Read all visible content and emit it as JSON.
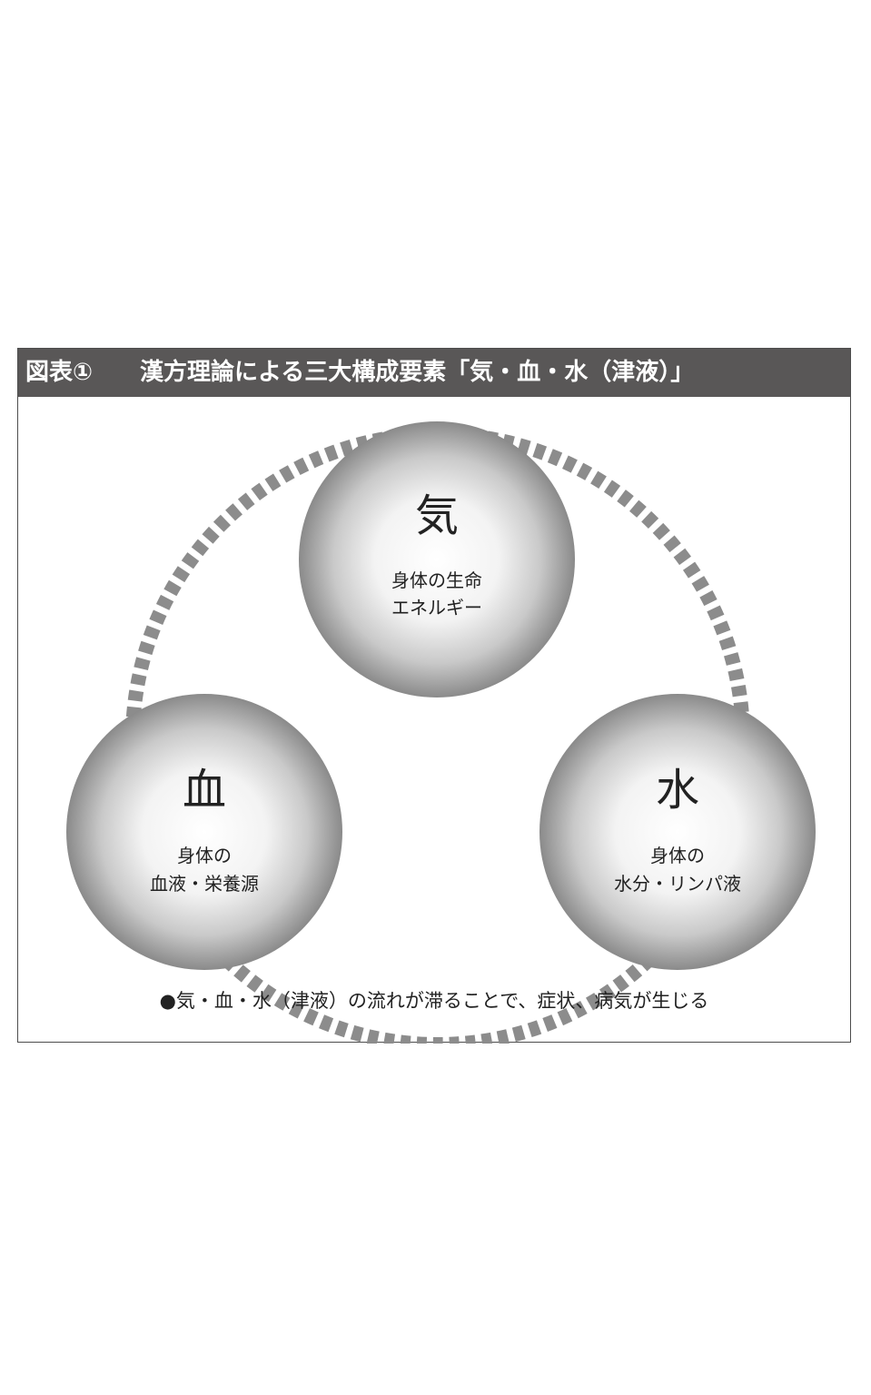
{
  "title": {
    "number": "図表①",
    "text": "漢方理論による三大構成要素「気・血・水（津液）」"
  },
  "nodes": [
    {
      "id": "ki",
      "kanji": "気",
      "desc_line1": "身体の生命",
      "desc_line2": "エネルギー"
    },
    {
      "id": "ketsu",
      "kanji": "血",
      "desc_line1": "身体の",
      "desc_line2": "血液・栄養源"
    },
    {
      "id": "sui",
      "kanji": "水",
      "desc_line1": "身体の",
      "desc_line2": "水分・リンパ液"
    }
  ],
  "note": "●気・血・水（津液）の流れが滞ることで、症状、病気が生じる",
  "colors": {
    "title_bar": "#595757",
    "border": "#4d4d4d",
    "dashed_ring": "#8c8c8c",
    "sphere_highlight": "#ffffff",
    "sphere_shadow": "#8a8a8a"
  }
}
